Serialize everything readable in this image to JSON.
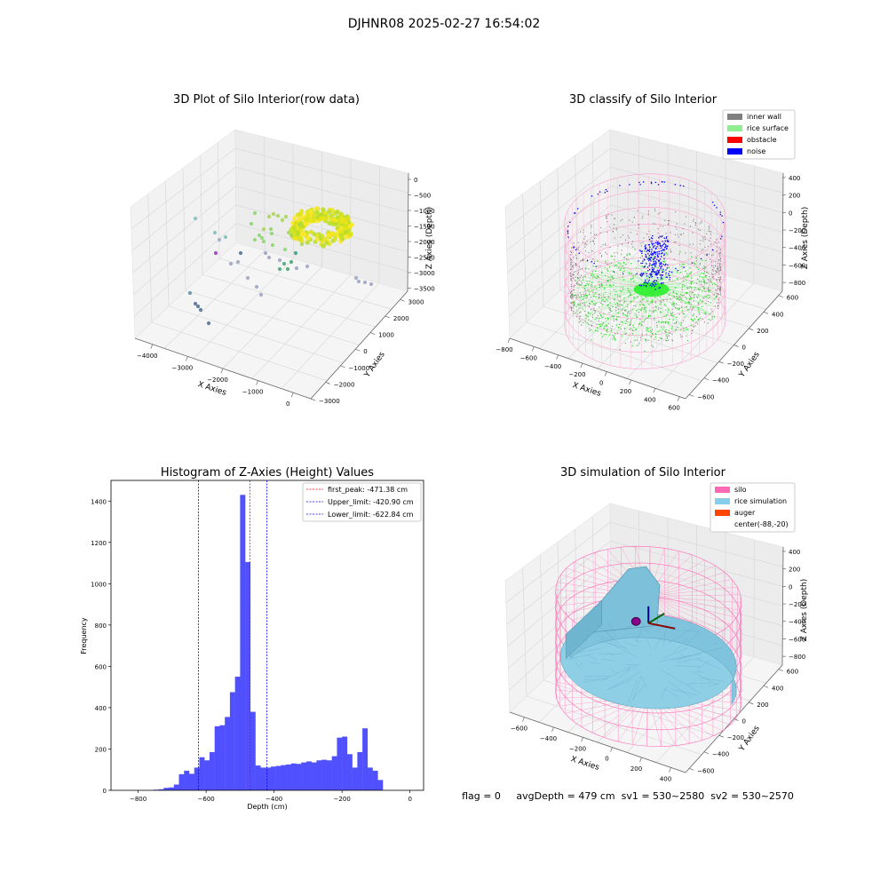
{
  "figure": {
    "suptitle": "DJHNR08 2025-02-27 16:54:02",
    "status_line": "flag = 0     avgDepth = 479 cm  sv1 = 530~2580  sv2 = 530~2570"
  },
  "colors": {
    "inner_wall": "#808080",
    "rice_surface": "#90ee90",
    "obstacle": "#ff0000",
    "noise": "#0000ff",
    "silo": "#ff69b4",
    "rice_simulation": "#87ceeb",
    "auger": "#ff4500",
    "hist_bar": "#5050ff",
    "first_peak_line": "#ff0000",
    "limit_line": "#0000ff"
  },
  "chart_data": [
    {
      "type": "scatter",
      "projection": "3d",
      "title": "3D Plot of Silo Interior(row data)",
      "xlabel": "X Axies",
      "ylabel": "Y Axies",
      "zlabel": "Z Axies (Depth)",
      "x_ticks": [
        "−4000",
        "−3000",
        "−2000",
        "−1000",
        "0"
      ],
      "y_ticks": [
        "−3000",
        "−2000",
        "−1000",
        "0",
        "1000",
        "2000",
        "3000"
      ],
      "z_ticks": [
        "0",
        "−500",
        "−1000",
        "−1500",
        "−2000",
        "−2500",
        "−3000",
        "−3500"
      ],
      "xlim": [
        -4500,
        500
      ],
      "ylim": [
        -3000,
        3500
      ],
      "zlim": [
        -3600,
        200
      ],
      "grid": true
    },
    {
      "type": "scatter",
      "projection": "3d",
      "title": "3D classify of Silo Interior",
      "ylabel": "Y Axies",
      "xlabel": "X Axies",
      "zlabel": "Z Axies (Depth)",
      "x_ticks": [
        "−800",
        "−600",
        "−400",
        "−200",
        "0",
        "200",
        "400",
        "600"
      ],
      "y_ticks": [
        "−600",
        "−400",
        "−200",
        "0",
        "200",
        "400",
        "600"
      ],
      "z_ticks": [
        "400",
        "200",
        "0",
        "−200",
        "−400",
        "−600",
        "−800"
      ],
      "xlim": [
        -800,
        650
      ],
      "ylim": [
        -650,
        650
      ],
      "zlim": [
        -900,
        450
      ],
      "grid": true,
      "legend_position": "top-right",
      "legend": [
        "inner wall",
        "rice surface",
        "obstacle",
        "noise"
      ]
    },
    {
      "type": "bar",
      "title": "Histogram of Z-Axies (Height) Values",
      "xlabel": "Depth (cm)",
      "ylabel": "Frequency",
      "xlim": [
        -880,
        40
      ],
      "ylim": [
        0,
        1500
      ],
      "x_ticks": [
        "−800",
        "−600",
        "−400",
        "−200",
        "0"
      ],
      "y_ticks": [
        "0",
        "200",
        "400",
        "600",
        "800",
        "1000",
        "1200",
        "1400"
      ],
      "bin_width": 15,
      "bin_start": -755,
      "values": [
        3,
        5,
        12,
        14,
        28,
        78,
        95,
        80,
        110,
        160,
        145,
        185,
        310,
        315,
        355,
        475,
        550,
        1430,
        1105,
        380,
        120,
        110,
        110,
        115,
        118,
        122,
        125,
        130,
        128,
        135,
        140,
        135,
        145,
        148,
        145,
        165,
        255,
        260,
        175,
        110,
        185,
        300,
        110,
        95,
        50
      ],
      "grid": false,
      "legend_position": "top-right",
      "vlines": [
        {
          "label": "first_peak: -471.38 cm",
          "x": -471.38,
          "color": "#ff0000"
        },
        {
          "label": "Upper_limit: -420.90 cm",
          "x": -420.9,
          "color": "#0000ff"
        },
        {
          "label": "Lower_limit: -622.84 cm",
          "x": -622.84,
          "color": "#0000ff"
        }
      ]
    },
    {
      "type": "surface",
      "projection": "3d",
      "title": "3D simulation of Silo Interior",
      "xlabel": "X Axies",
      "ylabel": "Y Axies",
      "zlabel": "Z Axies (Depth)",
      "x_ticks": [
        "−600",
        "−400",
        "−200",
        "0",
        "200",
        "400"
      ],
      "y_ticks": [
        "−600",
        "−400",
        "−200",
        "0",
        "200",
        "400",
        "600"
      ],
      "z_ticks": [
        "400",
        "200",
        "0",
        "−200",
        "−400",
        "−600",
        "−800"
      ],
      "xlim": [
        -700,
        500
      ],
      "ylim": [
        -650,
        650
      ],
      "zlim": [
        -900,
        450
      ],
      "grid": true,
      "legend_position": "top-right",
      "legend": [
        "silo",
        "rice simulation",
        "auger",
        "center(-88,-20)"
      ]
    }
  ]
}
